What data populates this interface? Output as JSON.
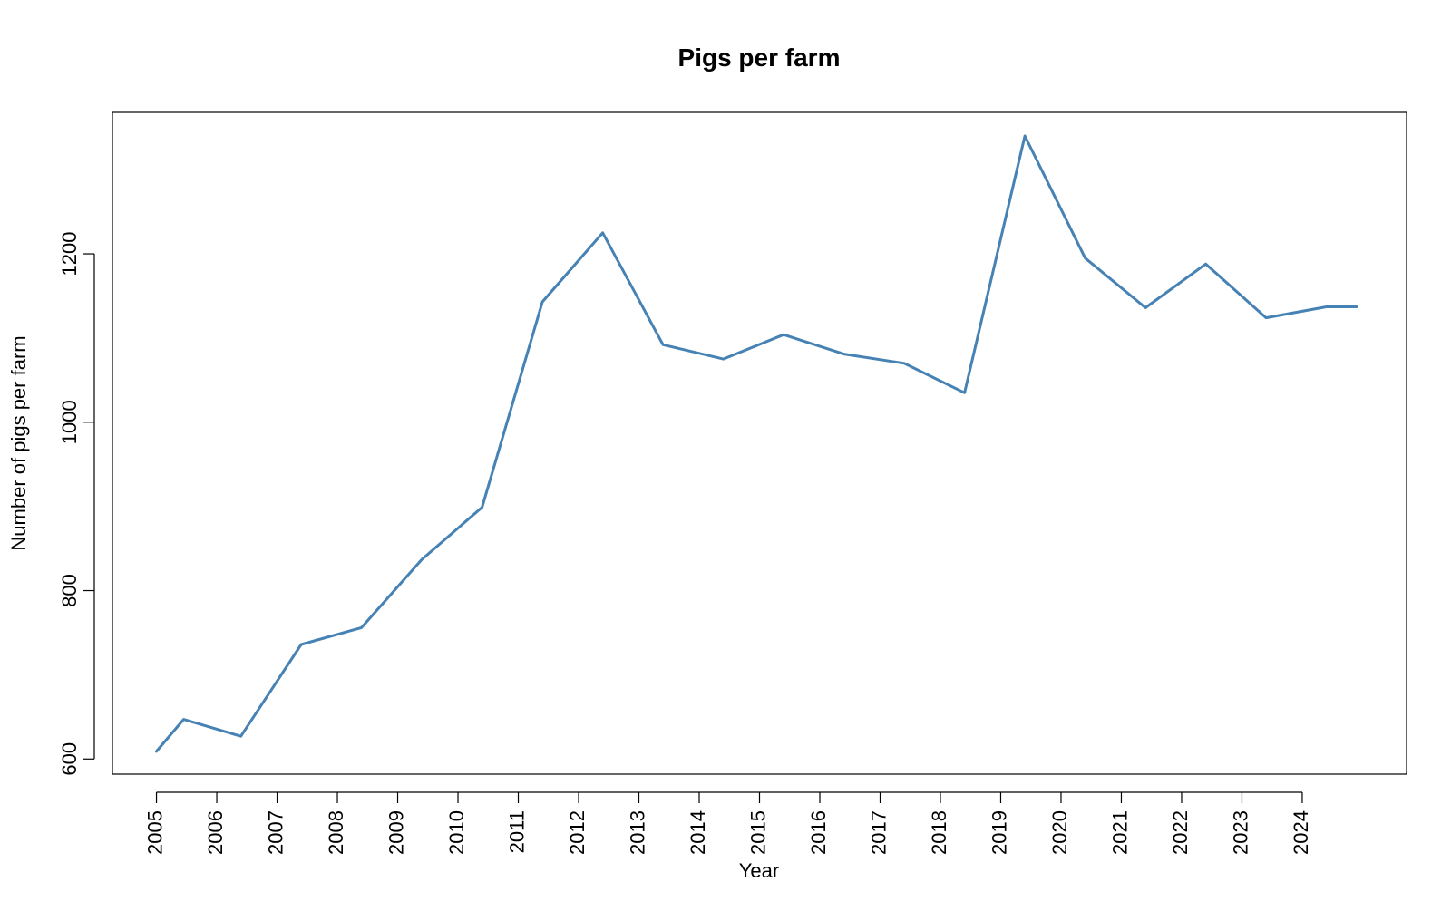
{
  "chart_data": {
    "type": "line",
    "title": "Pigs per farm",
    "xlabel": "Year",
    "ylabel": "Number of pigs per farm",
    "x_tick_labels": [
      "2005",
      "2006",
      "2007",
      "2008",
      "2009",
      "2010",
      "2011",
      "2012",
      "2013",
      "2014",
      "2015",
      "2016",
      "2017",
      "2018",
      "2019",
      "2020",
      "2021",
      "2022",
      "2023",
      "2024"
    ],
    "y_ticks": [
      600,
      800,
      1000,
      1200
    ],
    "xlim": [
      2004.27,
      2025.73
    ],
    "ylim": [
      582,
      1368
    ],
    "grid": false,
    "line_color": "#4682B4",
    "x": [
      2005.0,
      2005.45,
      2006.4,
      2007.4,
      2008.4,
      2009.4,
      2010.4,
      2011.4,
      2012.4,
      2013.4,
      2014.4,
      2015.4,
      2016.4,
      2017.4,
      2018.4,
      2019.4,
      2020.4,
      2021.4,
      2022.4,
      2023.4,
      2024.4,
      2024.9
    ],
    "values": [
      609,
      647,
      627,
      736,
      756,
      837,
      899,
      1143,
      1225,
      1092,
      1075,
      1104,
      1081,
      1070,
      1035,
      1340,
      1195,
      1136,
      1188,
      1124,
      1137,
      1137
    ]
  }
}
